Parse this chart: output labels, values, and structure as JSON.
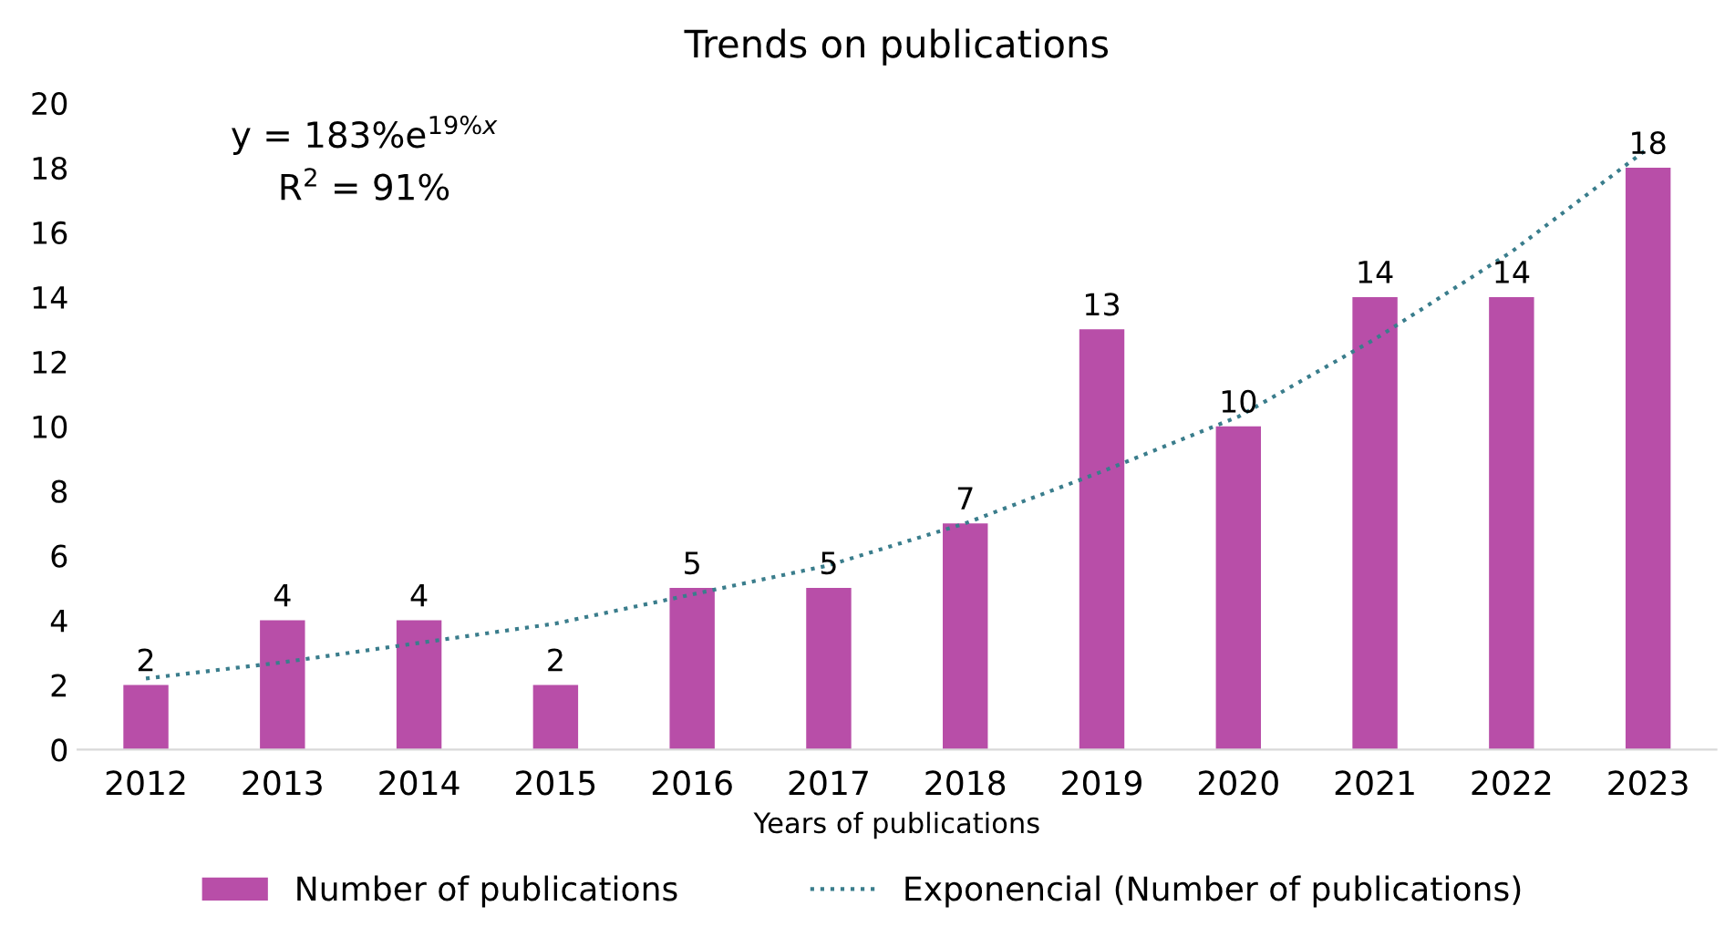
{
  "chart_data": {
    "type": "bar",
    "title": "Trends on publications",
    "xlabel": "Years of publications",
    "categories": [
      "2012",
      "2013",
      "2014",
      "2015",
      "2016",
      "2017",
      "2018",
      "2019",
      "2020",
      "2021",
      "2022",
      "2023"
    ],
    "series": [
      {
        "name": "Number of publications",
        "color": "#b84ea8",
        "values": [
          2,
          4,
          4,
          2,
          5,
          5,
          7,
          13,
          10,
          14,
          14,
          18
        ],
        "data_labels": true
      },
      {
        "name": "Exponencial (Number of publications)",
        "type": "line",
        "color": "#3a7d8c",
        "line_style": "dotted",
        "marker": "none",
        "values": [
          2.2,
          2.7,
          3.3,
          3.9,
          4.8,
          5.7,
          7.0,
          8.6,
          10.3,
          12.7,
          15.4,
          18.6
        ]
      }
    ],
    "annotations": [
      "y = 183%e$^{19%x}$",
      "R$^{2}$ = 91%"
    ],
    "ylim": [
      0,
      20
    ],
    "yticks": [
      0,
      2,
      4,
      6,
      8,
      10,
      12,
      14,
      16,
      18,
      20
    ],
    "grid": false,
    "legend": "bottom"
  }
}
